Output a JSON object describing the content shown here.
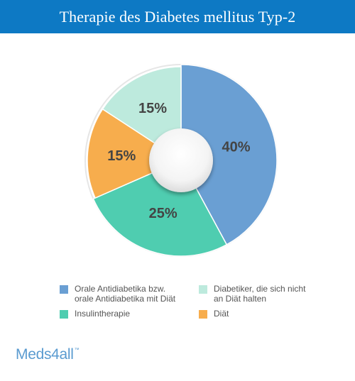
{
  "header": {
    "title": "Therapie des Diabetes mellitus Typ-2"
  },
  "chart_data": {
    "type": "pie",
    "title": "Therapie des Diabetes mellitus Typ-2",
    "inner_hole": true,
    "start": "top-center",
    "direction": "clockwise",
    "slices": [
      {
        "name": "Orale Antidiabetika bzw. orale Antidiabetika mit Diät",
        "value": 40,
        "label": "40%",
        "color": "#6a9fd3"
      },
      {
        "name": "Insulintherapie",
        "value": 25,
        "label": "25%",
        "color": "#4fcdb0"
      },
      {
        "name": "Diät",
        "value": 15,
        "label": "15%",
        "color": "#f7ad4d"
      },
      {
        "name": "Diabetiker, die sich nicht an Diät halten",
        "value": 15,
        "label": "15%",
        "color": "#bdeadd"
      }
    ],
    "legend": {
      "placement": "bottom",
      "items": [
        {
          "label": "Orale Antidiabetika bzw.\norale Antidiabetika mit Diät",
          "color": "#6a9fd3"
        },
        {
          "label": "Diabetiker, die sich nicht\nan Diät halten",
          "color": "#bdeadd"
        },
        {
          "label": "Insulintherapie",
          "color": "#4fcdb0"
        },
        {
          "label": "Diät",
          "color": "#f7ad4d"
        }
      ]
    }
  },
  "logo": {
    "text": "Meds4all",
    "tm": "™"
  }
}
